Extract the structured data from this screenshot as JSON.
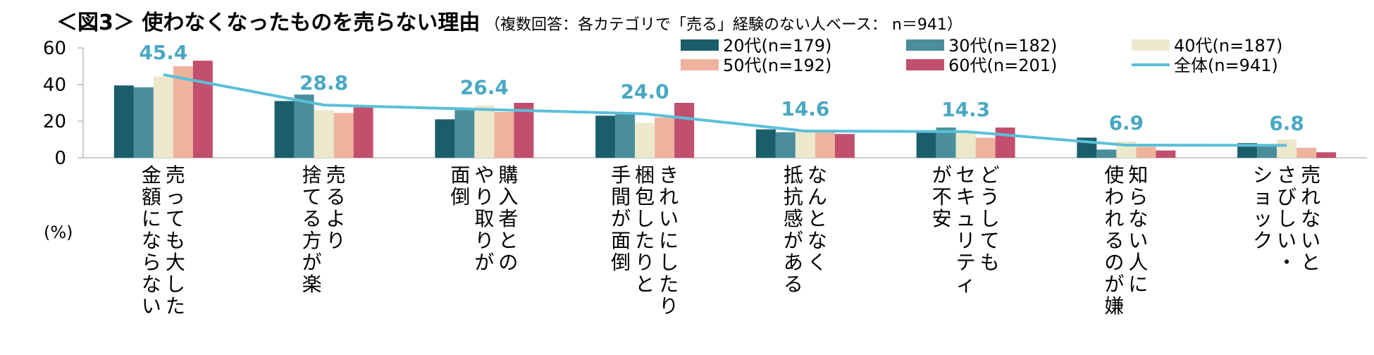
{
  "chart_data": {
    "type": "bar",
    "title": "＜図3＞ 使わなくなったものを売らない理由",
    "subtitle": "（複数回答：各カテゴリで「売る」経験のない人ベース： n＝941）",
    "unit_label": "(%)",
    "ylim": [
      0,
      60
    ],
    "yticks": [
      0,
      20,
      40,
      60
    ],
    "categories": [
      [
        "売っても大した",
        "金額にならない"
      ],
      [
        "売るより",
        "捨てる方が楽"
      ],
      [
        "購入者との",
        "やり取りが",
        "面倒"
      ],
      [
        "きれいにしたり",
        "梱包したりと",
        "手間が面倒"
      ],
      [
        "なんとなく",
        "抵抗感がある"
      ],
      [
        "どうしても",
        "セキュリティ",
        "が不安"
      ],
      [
        "知らない人に",
        "使われるのが嫌"
      ],
      [
        "売れないと",
        "さびしい・",
        "ショック"
      ]
    ],
    "series": [
      {
        "name": "20代(n=179)",
        "color": "#1b5e6b",
        "values": [
          39.5,
          31.0,
          21.0,
          23.0,
          15.5,
          14.0,
          11.0,
          8.0
        ]
      },
      {
        "name": "30代(n=182)",
        "color": "#4a8e9c",
        "values": [
          38.5,
          34.5,
          26.0,
          24.0,
          14.0,
          16.5,
          4.5,
          6.5
        ]
      },
      {
        "name": "40代(n=187)",
        "color": "#ece8cc",
        "values": [
          44.5,
          26.0,
          28.5,
          19.0,
          14.5,
          13.5,
          9.0,
          10.0
        ]
      },
      {
        "name": "50代(n=192)",
        "color": "#eeb39d",
        "values": [
          50.0,
          24.5,
          25.0,
          22.0,
          14.0,
          11.0,
          6.0,
          5.5
        ]
      },
      {
        "name": "60代(n=201)",
        "color": "#c24f6e",
        "values": [
          53.0,
          27.5,
          30.0,
          30.0,
          13.0,
          16.5,
          4.0,
          3.0
        ]
      }
    ],
    "total": {
      "name": "全体(n=941)",
      "color": "#5bbfd8",
      "values": [
        45.4,
        28.8,
        26.4,
        24.0,
        14.6,
        14.3,
        6.9,
        6.8
      ]
    },
    "data_labels": [
      "45.4",
      "28.8",
      "26.4",
      "24.0",
      "14.6",
      "14.3",
      "6.9",
      "6.8"
    ]
  }
}
